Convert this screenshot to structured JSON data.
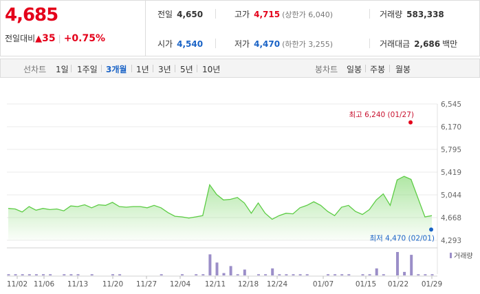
{
  "quote": {
    "price": "4,685",
    "change_label": "전일대비",
    "change_arrow": "▲",
    "change_amount": "35",
    "change_pct": "+0.75%",
    "metrics": [
      {
        "label": "전일",
        "value": "4,650",
        "tone": "black"
      },
      {
        "label": "고가",
        "value": "4,715",
        "sub": "(상한가 6,040)",
        "tone": "red"
      },
      {
        "label": "거래량",
        "value": "583,338",
        "tone": "black"
      },
      {
        "label": "시가",
        "value": "4,540",
        "tone": "blue"
      },
      {
        "label": "저가",
        "value": "4,470",
        "sub": "(하한가 3,255)",
        "tone": "blue"
      },
      {
        "label": "거래대금",
        "value": "2,686",
        "unit": "백만",
        "tone": "black"
      }
    ]
  },
  "toolbar": {
    "line_label": "선차트",
    "periods": [
      "1일",
      "1주일",
      "3개월",
      "1년",
      "3년",
      "5년",
      "10년"
    ],
    "active_period": "3개월",
    "candle_label": "봉차트",
    "candle_periods": [
      "일봉",
      "주봉",
      "월봉"
    ]
  },
  "chart_data": {
    "type": "line",
    "y_ticks": [
      "6,545",
      "6,170",
      "5,795",
      "5,419",
      "5,044",
      "4,668",
      "4,293"
    ],
    "ylim": [
      4293,
      6545
    ],
    "x_ticks": [
      "11/02",
      "11/06",
      "11/13",
      "11/20",
      "11/27",
      "12/04",
      "12/11",
      "12/18",
      "12/24",
      "01/07",
      "01/15",
      "01/22",
      "01/29"
    ],
    "series": [
      {
        "values": [
          4820,
          4810,
          4760,
          4850,
          4790,
          4820,
          4800,
          4810,
          4780,
          4860,
          4850,
          4880,
          4830,
          4880,
          4870,
          4920,
          4850,
          4840,
          4850,
          4850,
          4830,
          4870,
          4830,
          4750,
          4690,
          4680,
          4660,
          4680,
          4700,
          5210,
          5050,
          4960,
          4970,
          5000,
          4910,
          4740,
          4910,
          4740,
          4640,
          4700,
          4740,
          4730,
          4830,
          4870,
          4930,
          4870,
          4770,
          4700,
          4840,
          4870,
          4770,
          4720,
          4800,
          4960,
          5060,
          4870,
          5290,
          5350,
          5300,
          4990,
          4680,
          4700
        ]
      }
    ],
    "max_annotation": {
      "label": "최고",
      "value": "6,240",
      "date": "(01/27)",
      "y": 6240
    },
    "min_annotation": {
      "label": "최저",
      "value": "4,470",
      "date": "(02/01)",
      "y": 4470
    },
    "volume_label": "거래량",
    "volume": [
      0.05,
      0.05,
      0.05,
      0.05,
      0.05,
      0.05,
      0.05,
      0,
      0.05,
      0.05,
      0.05,
      0,
      0.05,
      0,
      0,
      0.05,
      0.05,
      0,
      0,
      0,
      0,
      0,
      0.05,
      0,
      0,
      0.05,
      0,
      0.05,
      0.05,
      0.9,
      0.55,
      0.1,
      0.4,
      0.05,
      0.25,
      0,
      0.05,
      0.05,
      0.3,
      0.05,
      0.05,
      0.05,
      0.05,
      0.05,
      0,
      0,
      0.05,
      0.05,
      0.05,
      0.05,
      0,
      0.05,
      0.05,
      0.3,
      0.05,
      0,
      1.0,
      0.15,
      0.88,
      0.05,
      0.05,
      0.05
    ]
  }
}
